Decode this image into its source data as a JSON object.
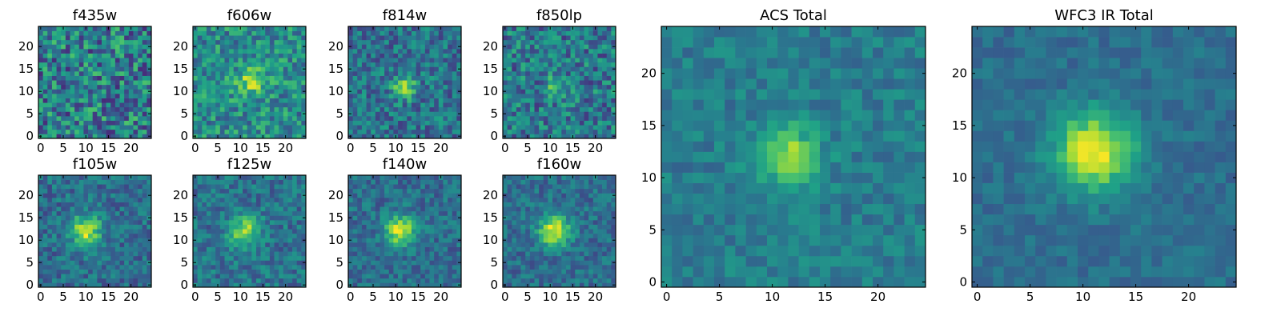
{
  "figure": {
    "colormap": "viridis",
    "colormap_stops": [
      "#440154",
      "#46327e",
      "#365c8d",
      "#277f8e",
      "#1fa187",
      "#4ac16d",
      "#a0da39",
      "#fde725"
    ]
  },
  "chart_data": [
    {
      "id": "f435w",
      "type": "heatmap",
      "title": "f435w",
      "grid_size": 25,
      "xticks": [
        0,
        5,
        10,
        15,
        20
      ],
      "yticks": [
        0,
        5,
        10,
        15,
        20
      ],
      "xlim": [
        0,
        24
      ],
      "ylim": [
        0,
        24
      ],
      "source": {
        "peaks": [],
        "noise": 0.6,
        "base": 0.42
      }
    },
    {
      "id": "f606w",
      "type": "heatmap",
      "title": "f606w",
      "grid_size": 25,
      "xticks": [
        0,
        5,
        10,
        15,
        20
      ],
      "yticks": [
        0,
        5,
        10,
        15,
        20
      ],
      "xlim": [
        0,
        24
      ],
      "ylim": [
        0,
        24
      ],
      "source": {
        "peaks": [
          {
            "x": 12,
            "y": 12,
            "amp": 0.35,
            "sigma": 2.2
          }
        ],
        "noise": 0.45,
        "base": 0.48
      }
    },
    {
      "id": "f814w",
      "type": "heatmap",
      "title": "f814w",
      "grid_size": 25,
      "xticks": [
        0,
        5,
        10,
        15,
        20
      ],
      "yticks": [
        0,
        5,
        10,
        15,
        20
      ],
      "xlim": [
        0,
        24
      ],
      "ylim": [
        0,
        24
      ],
      "source": {
        "peaks": [
          {
            "x": 12,
            "y": 11,
            "amp": 0.45,
            "sigma": 1.8
          }
        ],
        "noise": 0.4,
        "base": 0.38
      }
    },
    {
      "id": "f850lp",
      "type": "heatmap",
      "title": "f850lp",
      "grid_size": 25,
      "xticks": [
        0,
        5,
        10,
        15,
        20
      ],
      "yticks": [
        0,
        5,
        10,
        15,
        20
      ],
      "xlim": [
        0,
        24
      ],
      "ylim": [
        0,
        24
      ],
      "source": {
        "peaks": [
          {
            "x": 11,
            "y": 11,
            "amp": 0.3,
            "sigma": 1.6
          }
        ],
        "noise": 0.48,
        "base": 0.4
      }
    },
    {
      "id": "f105w",
      "type": "heatmap",
      "title": "f105w",
      "grid_size": 25,
      "xticks": [
        0,
        5,
        10,
        15,
        20
      ],
      "yticks": [
        0,
        5,
        10,
        15,
        20
      ],
      "xlim": [
        0,
        24
      ],
      "ylim": [
        0,
        24
      ],
      "source": {
        "peaks": [
          {
            "x": 10,
            "y": 12,
            "amp": 0.55,
            "sigma": 2.4
          }
        ],
        "noise": 0.32,
        "base": 0.36
      }
    },
    {
      "id": "f125w",
      "type": "heatmap",
      "title": "f125w",
      "grid_size": 25,
      "xticks": [
        0,
        5,
        10,
        15,
        20
      ],
      "yticks": [
        0,
        5,
        10,
        15,
        20
      ],
      "xlim": [
        0,
        24
      ],
      "ylim": [
        0,
        24
      ],
      "source": {
        "peaks": [
          {
            "x": 11,
            "y": 12,
            "amp": 0.5,
            "sigma": 2.3
          }
        ],
        "noise": 0.32,
        "base": 0.38
      }
    },
    {
      "id": "f140w",
      "type": "heatmap",
      "title": "f140w",
      "grid_size": 25,
      "xticks": [
        0,
        5,
        10,
        15,
        20
      ],
      "yticks": [
        0,
        5,
        10,
        15,
        20
      ],
      "xlim": [
        0,
        24
      ],
      "ylim": [
        0,
        24
      ],
      "source": {
        "peaks": [
          {
            "x": 11,
            "y": 12,
            "amp": 0.58,
            "sigma": 2.4
          }
        ],
        "noise": 0.28,
        "base": 0.36
      }
    },
    {
      "id": "f160w",
      "type": "heatmap",
      "title": "f160w",
      "grid_size": 25,
      "xticks": [
        0,
        5,
        10,
        15,
        20
      ],
      "yticks": [
        0,
        5,
        10,
        15,
        20
      ],
      "xlim": [
        0,
        24
      ],
      "ylim": [
        0,
        24
      ],
      "source": {
        "peaks": [
          {
            "x": 11,
            "y": 12,
            "amp": 0.62,
            "sigma": 2.4
          }
        ],
        "noise": 0.28,
        "base": 0.36
      }
    },
    {
      "id": "acs_total",
      "type": "heatmap",
      "title": "ACS Total",
      "grid_size": 25,
      "xticks": [
        0,
        5,
        10,
        15,
        20
      ],
      "yticks": [
        0,
        5,
        10,
        15,
        20
      ],
      "xlim": [
        0,
        24
      ],
      "ylim": [
        0,
        24
      ],
      "source": {
        "peaks": [
          {
            "x": 11.5,
            "y": 12,
            "amp": 0.45,
            "sigma": 2.0
          }
        ],
        "noise": 0.22,
        "base": 0.42
      }
    },
    {
      "id": "wfc3_ir_total",
      "type": "heatmap",
      "title": "WFC3 IR Total",
      "grid_size": 25,
      "xticks": [
        0,
        5,
        10,
        15,
        20
      ],
      "yticks": [
        0,
        5,
        10,
        15,
        20
      ],
      "xlim": [
        0,
        24
      ],
      "ylim": [
        0,
        24
      ],
      "source": {
        "peaks": [
          {
            "x": 11,
            "y": 12.5,
            "amp": 0.62,
            "sigma": 2.6
          }
        ],
        "noise": 0.16,
        "base": 0.36
      }
    }
  ]
}
